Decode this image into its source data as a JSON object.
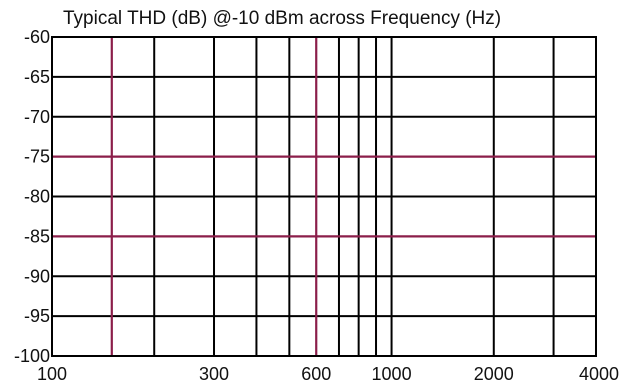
{
  "chart_data": {
    "type": "line",
    "title": "Typical THD (dB) @-10 dBm across Frequency (Hz)",
    "xlabel": "",
    "ylabel": "",
    "x_scale": "log",
    "xlim": [
      100,
      4000
    ],
    "ylim": [
      -100,
      -60
    ],
    "x_tick_labels": [
      "100",
      "300",
      "600",
      "1000",
      "2000",
      "4000"
    ],
    "x_tick_values": [
      100,
      300,
      600,
      1000,
      2000,
      4000
    ],
    "y_tick_labels": [
      "-60",
      "-65",
      "-70",
      "-75",
      "-80",
      "-85",
      "-90",
      "-95",
      "-100"
    ],
    "y_tick_values": [
      -60,
      -65,
      -70,
      -75,
      -80,
      -85,
      -90,
      -95,
      -100
    ],
    "grid": true,
    "x_grid_black": [
      200,
      300,
      400,
      500,
      700,
      800,
      900,
      1000,
      2000,
      3000
    ],
    "x_grid_highlight": [
      150,
      600
    ],
    "y_grid_black": [
      -65,
      -70,
      -80,
      -90,
      -95
    ],
    "y_grid_highlight": [
      -75,
      -85
    ],
    "grid_color": "#000000",
    "highlight_color": "#8b1e4a",
    "series": []
  }
}
